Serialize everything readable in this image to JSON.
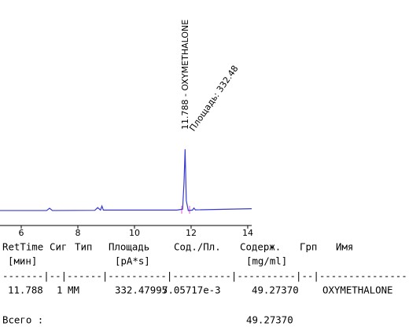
{
  "chart_data": {
    "type": "line",
    "x": [
      5.25,
      6.9,
      7.0,
      7.1,
      8.6,
      8.7,
      8.8,
      8.85,
      8.9,
      11.5,
      11.7,
      11.75,
      11.788,
      11.83,
      11.9,
      12.05,
      12.1,
      12.15,
      14.14
    ],
    "series": [
      {
        "color": "#3a3ad0",
        "values": [
          7.6,
          7.6,
          8.6,
          7.6,
          7.7,
          8.9,
          7.8,
          9.6,
          7.8,
          7.8,
          8.2,
          20,
          34.5,
          12,
          7.6,
          7.8,
          8.7,
          7.9,
          8.4
        ]
      }
    ],
    "xlim": [
      5.25,
      14.14
    ],
    "ylim": [
      0,
      100
    ],
    "xticks": [
      6,
      8,
      10,
      12,
      14
    ],
    "annotations": [
      "11.788 - OXYMETHALONE",
      "Площадь: 332.48"
    ]
  },
  "report": {
    "headers": [
      "RetTime",
      "Сиг",
      "Тип",
      "Площадь",
      "Сод./Пл.",
      "Содерж.",
      "Грп",
      "Имя"
    ],
    "units": [
      "[мин]",
      "[pA*s]",
      "[mg/ml]"
    ],
    "separator": "-------|--|------|----------|----------|----------|--|---------------",
    "rows": [
      [
        "11.788",
        "1",
        "MM",
        "332.47995",
        "7.05717e-3",
        "49.27370",
        "OXYMETHALONE"
      ]
    ],
    "total_label": "Всего :",
    "total": "49.27370"
  }
}
